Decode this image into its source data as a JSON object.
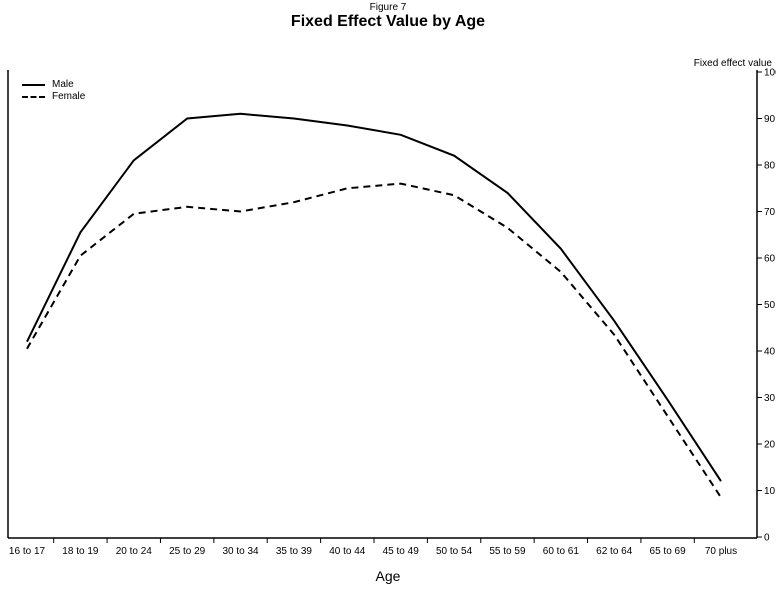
{
  "figure_label": "Figure 7",
  "title": "Fixed Effect Value by Age",
  "x_axis_label": "Age",
  "right_axis_label": "Fixed effect value",
  "legend": {
    "items": [
      {
        "label": "Male",
        "style": "solid"
      },
      {
        "label": "Female",
        "style": "dashed"
      }
    ]
  },
  "colors": {
    "line": "#000000",
    "background": "#ffffff"
  },
  "chart_data": {
    "type": "line",
    "title": "Fixed Effect Value by Age",
    "xlabel": "Age",
    "ylabel": "Fixed effect value",
    "categories": [
      "16 to 17",
      "18 to 19",
      "20 to 24",
      "25 to 29",
      "30 to 34",
      "35 to 39",
      "40 to 44",
      "45 to 49",
      "50 to 54",
      "55 to 59",
      "60 to 61",
      "62 to 64",
      "65 to 69",
      "70 plus"
    ],
    "series": [
      {
        "name": "Male",
        "style": "solid",
        "values": [
          42,
          65.5,
          81,
          90,
          91,
          90,
          88.5,
          86.5,
          82,
          74,
          62,
          46.5,
          29.5,
          12
        ]
      },
      {
        "name": "Female",
        "style": "dashed",
        "values": [
          40.5,
          60.5,
          69.5,
          71,
          70,
          72,
          75,
          76,
          73.5,
          66.5,
          57,
          43.5,
          26,
          8.5
        ]
      }
    ],
    "ylim": [
      0,
      100
    ],
    "y_ticks": [
      0,
      10,
      20,
      30,
      40,
      50,
      60,
      70,
      80,
      90,
      100
    ],
    "y_axis_side": "right",
    "grid": false,
    "legend_position": "top-left"
  }
}
